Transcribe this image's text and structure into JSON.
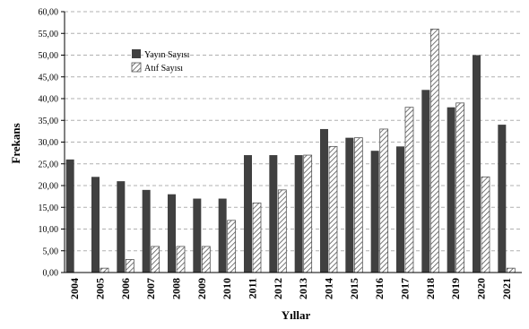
{
  "chart_data": {
    "type": "bar",
    "title": "",
    "xlabel": "Yıllar",
    "ylabel": "Frekans",
    "ylim": [
      0,
      60
    ],
    "yticks": [
      "0,00",
      "5,00",
      "10,00",
      "15,00",
      "20,00",
      "25,00",
      "30,00",
      "35,00",
      "40,00",
      "45,00",
      "50,00",
      "55,00",
      "60,00"
    ],
    "grid": true,
    "legend_position": "top-left",
    "categories": [
      "2004",
      "2005",
      "2006",
      "2007",
      "2008",
      "2009",
      "2010",
      "2011",
      "2012",
      "2013",
      "2014",
      "2015",
      "2016",
      "2017",
      "2018",
      "2019",
      "2020",
      "2021"
    ],
    "series": [
      {
        "name": "Yayın Sayısı",
        "color": "#404040",
        "pattern": "solid",
        "values": [
          26,
          22,
          21,
          19,
          18,
          17,
          17,
          27,
          27,
          27,
          33,
          31,
          28,
          29,
          42,
          38,
          50,
          34
        ]
      },
      {
        "name": "Atıf Sayısı",
        "color": "#606060",
        "pattern": "hatched",
        "values": [
          0,
          1,
          3,
          6,
          6,
          6,
          12,
          16,
          19,
          27,
          29,
          31,
          33,
          38,
          56,
          39,
          22,
          1
        ]
      }
    ]
  }
}
